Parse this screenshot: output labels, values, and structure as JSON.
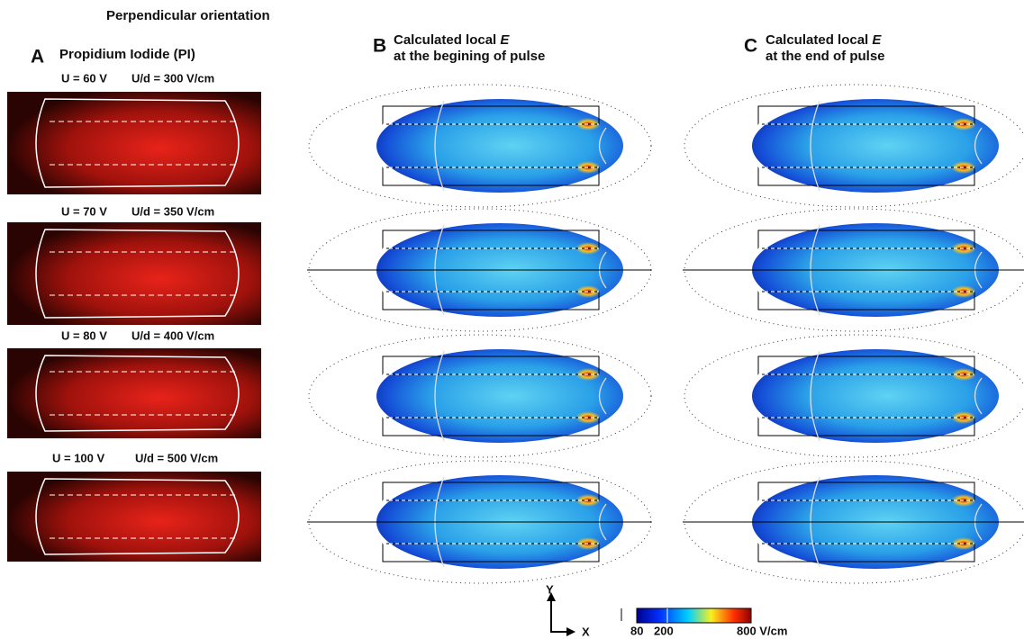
{
  "figure": {
    "title": "Perpendicular orientation",
    "panels": [
      {
        "letter": "A",
        "title": "Propidium Iodide (PI)"
      },
      {
        "letter": "B",
        "title": "Calculated local",
        "symbol": "E",
        "subtitle": "at the begining of pulse"
      },
      {
        "letter": "C",
        "title": "Calculated local",
        "symbol": "E",
        "subtitle": "at the end of pulse"
      }
    ],
    "rows": [
      {
        "voltage": "U = 60 V",
        "field": "U/d = 300 V/cm"
      },
      {
        "voltage": "U = 70 V",
        "field": "U/d = 350 V/cm"
      },
      {
        "voltage": "U = 80 V",
        "field": "U/d = 400 V/cm"
      },
      {
        "voltage": "U = 100 V",
        "field": "U/d = 500 V/cm"
      }
    ],
    "axes": {
      "y": "Y",
      "x": "X"
    },
    "colorbar": {
      "labels": [
        "80",
        "200",
        "800 V/cm"
      ]
    }
  }
}
